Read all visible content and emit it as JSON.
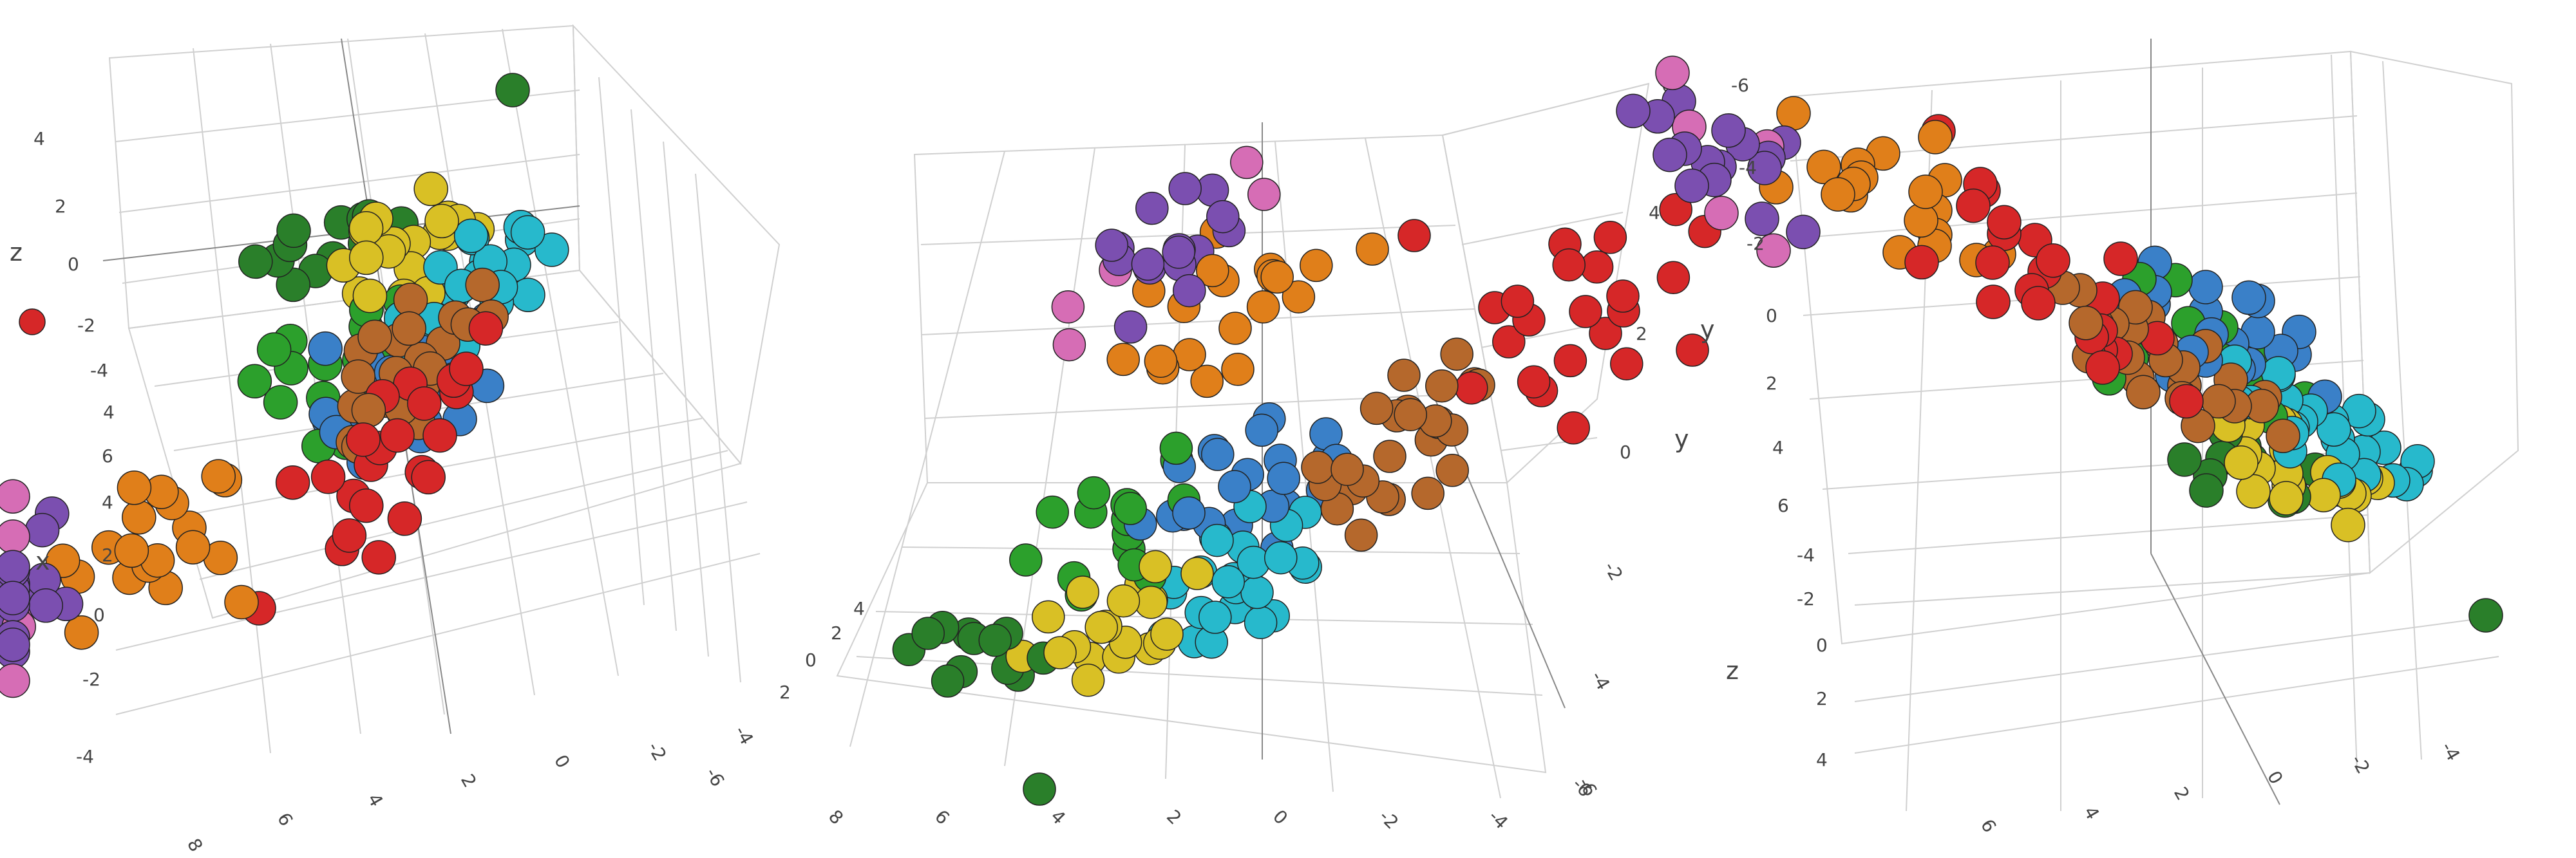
{
  "chart_data": [
    {
      "type": "scatter3d",
      "axes": {
        "x": {
          "title": "x",
          "ticks": [
            "8",
            "6",
            "4",
            "2",
            "0",
            "-2",
            "-4"
          ]
        },
        "y": {
          "title": "",
          "ticks": [
            "6",
            "4",
            "2",
            "0",
            "-2",
            "-4",
            "-6"
          ]
        },
        "z": {
          "title": "z",
          "ticks": [
            "4",
            "2",
            "0",
            "-2",
            "-4"
          ]
        }
      },
      "legend": [
        {
          "color": "#d62728"
        }
      ],
      "groups": "shared"
    },
    {
      "type": "scatter3d",
      "axes": {
        "x": {
          "title": "x",
          "ticks": [
            "8",
            "6",
            "4",
            "2",
            "0",
            "-2",
            "-4",
            "-6"
          ]
        },
        "y": {
          "title": "y",
          "ticks": [
            "6",
            "4",
            "2",
            "0",
            "-2",
            "-4",
            "-6"
          ]
        },
        "z": {
          "title": "",
          "ticks": [
            "4",
            "2",
            "0",
            "2"
          ]
        }
      },
      "groups": "shared"
    },
    {
      "type": "scatter3d",
      "axes": {
        "x": {
          "title": "x",
          "ticks": [
            "6",
            "4",
            "2",
            "0",
            "-2",
            "-4"
          ]
        },
        "y": {
          "title": "y",
          "ticks": [
            "-6",
            "-4",
            "-2",
            "0",
            "2",
            "4",
            "6"
          ]
        },
        "z": {
          "title": "z",
          "ticks": [
            "-4",
            "-2",
            "0",
            "2",
            "4"
          ]
        }
      },
      "groups": "shared"
    }
  ],
  "groups": [
    {
      "color": "#d62728",
      "points": [
        [
          -2,
          5,
          1.5
        ],
        [
          -1.5,
          4,
          0.5
        ],
        [
          -2.5,
          5.5,
          2
        ],
        [
          -1,
          3.5,
          -0.5
        ],
        [
          -3,
          4.5,
          1
        ],
        [
          -2,
          6,
          2.5
        ],
        [
          -1.8,
          5.2,
          0.2
        ],
        [
          -2.6,
          4.2,
          1.8
        ],
        [
          -1.2,
          4.8,
          -1
        ],
        [
          -3.2,
          5.8,
          0.8
        ],
        [
          -2.2,
          3.8,
          2.2
        ],
        [
          -1.6,
          5.6,
          -0.2
        ],
        [
          -2.9,
          3.2,
          1.2
        ],
        [
          -0.8,
          4.4,
          0.8
        ],
        [
          -3.4,
          4.9,
          2.6
        ],
        [
          -2.4,
          6.3,
          -0.6
        ],
        [
          -1.4,
          3.0,
          1.6
        ],
        [
          -3.0,
          6.6,
          0.4
        ],
        [
          -2.1,
          2.8,
          -0.9
        ],
        [
          -3.6,
          3.6,
          2.9
        ],
        [
          -0.6,
          5.9,
          1.9
        ],
        [
          -4,
          6,
          3.5
        ],
        [
          1,
          3,
          -3
        ]
      ]
    },
    {
      "color": "#e07f1a",
      "points": [
        [
          3,
          1,
          -1.5
        ],
        [
          3.5,
          0.5,
          -1
        ],
        [
          4,
          1.5,
          -2
        ],
        [
          2.5,
          0.8,
          -0.5
        ],
        [
          4.5,
          1.2,
          -1.2
        ],
        [
          3.2,
          1.8,
          -2.4
        ],
        [
          3.8,
          0.2,
          -0.8
        ],
        [
          2.8,
          1.4,
          -1.8
        ],
        [
          4.2,
          0.6,
          -0.2
        ],
        [
          3.4,
          2.2,
          -1.4
        ],
        [
          4.8,
          1.9,
          -2.8
        ],
        [
          2.6,
          0.1,
          -1.1
        ],
        [
          3.6,
          2.6,
          -0.6
        ],
        [
          5.2,
          0.9,
          -1.9
        ],
        [
          2.2,
          1.6,
          -2.2
        ],
        [
          4.4,
          -0.3,
          -1.6
        ],
        [
          3.0,
          2.9,
          -0.9
        ],
        [
          5.0,
          2.4,
          -0.4
        ],
        [
          1.5,
          2.5,
          -3
        ]
      ]
    },
    {
      "color": "#7b4fb0",
      "points": [
        [
          5.5,
          2,
          -1
        ],
        [
          6,
          2.5,
          -0.5
        ],
        [
          5.8,
          1.5,
          -1.5
        ],
        [
          6.4,
          2.2,
          -0.2
        ],
        [
          5.2,
          2.8,
          -1.2
        ],
        [
          6.8,
          1.8,
          -0.8
        ],
        [
          6.1,
          3.1,
          -1.8
        ],
        [
          5.6,
          1.2,
          0.2
        ],
        [
          7.0,
          2.6,
          -1.4
        ],
        [
          5.9,
          3.4,
          -0.4
        ],
        [
          6.6,
          1.4,
          -2.0
        ],
        [
          5.4,
          2.4,
          0.6
        ],
        [
          7.3,
          2.1,
          -0.6
        ],
        [
          6.3,
          2.9,
          0.4
        ],
        [
          5.1,
          1.9,
          -1.9
        ],
        [
          6.9,
          3.3,
          -1.1
        ]
      ]
    },
    {
      "color": "#d66db5",
      "points": [
        [
          6.2,
          1,
          -2
        ],
        [
          5.8,
          3.5,
          -2.4
        ],
        [
          6.6,
          0.8,
          0.8
        ],
        [
          5.4,
          3.8,
          -0.9
        ],
        [
          7.2,
          1.2,
          0.3
        ]
      ]
    },
    {
      "color": "#2ca02c",
      "points": [
        [
          1,
          -3,
          -1
        ],
        [
          1.5,
          -2.5,
          -0.5
        ],
        [
          0.5,
          -3.5,
          -1.5
        ],
        [
          2,
          -2,
          0
        ],
        [
          1.2,
          -4,
          -0.8
        ],
        [
          0.8,
          -2.8,
          0.4
        ],
        [
          1.8,
          -3.3,
          -1.9
        ],
        [
          2.4,
          -2.6,
          -1.2
        ],
        [
          0.2,
          -3.0,
          0.2
        ],
        [
          1.4,
          -1.8,
          -2.2
        ],
        [
          2.6,
          -3.8,
          -0.4
        ],
        [
          0.6,
          -4.4,
          -1.1
        ],
        [
          2.2,
          -1.6,
          0.9
        ],
        [
          1.0,
          -2.2,
          -2.6
        ],
        [
          3.0,
          -2.9,
          -0.6
        ],
        [
          0.4,
          -2.4,
          -1.7
        ]
      ]
    },
    {
      "color": "#2a7f2a",
      "points": [
        [
          2,
          -4.5,
          1
        ],
        [
          2.5,
          -5,
          0.5
        ],
        [
          1.5,
          -4.8,
          1.6
        ],
        [
          3,
          -5.2,
          0.2
        ],
        [
          2.2,
          -5.6,
          1.2
        ],
        [
          1.2,
          -4.2,
          2
        ],
        [
          2.8,
          -4.4,
          1.8
        ],
        [
          3.4,
          -5.5,
          0.8
        ],
        [
          1.8,
          -5.8,
          0.3
        ],
        [
          2.6,
          -4.0,
          2.4
        ],
        [
          3.6,
          -4.8,
          1.4
        ],
        [
          0.9,
          -5.2,
          0.9
        ],
        [
          -1,
          -6,
          3
        ]
      ]
    },
    {
      "color": "#3a80c8",
      "points": [
        [
          -0.5,
          -1,
          -1.5
        ],
        [
          0,
          -1.5,
          -1
        ],
        [
          -1,
          -0.5,
          -2
        ],
        [
          0.5,
          -2,
          -0.5
        ],
        [
          -0.8,
          -1.2,
          -0.2
        ],
        [
          0.2,
          -0.8,
          -2.4
        ],
        [
          -1.4,
          -1.6,
          -1.2
        ],
        [
          0.8,
          -1.4,
          -1.8
        ],
        [
          -0.2,
          -2.2,
          -0.8
        ],
        [
          -1.2,
          -0.2,
          -0.6
        ],
        [
          0.4,
          -2.6,
          -1.4
        ],
        [
          -1.6,
          -1.0,
          -2.2
        ],
        [
          1.0,
          -1.0,
          -0.9
        ],
        [
          -0.6,
          -2.0,
          -2.6
        ],
        [
          0.6,
          -0.4,
          -1.1
        ],
        [
          -1.8,
          -2.0,
          -0.4
        ],
        [
          1.2,
          -1.8,
          -1.6
        ],
        [
          -0.4,
          -0.6,
          -0.1
        ],
        [
          0.0,
          -2.8,
          -2.0
        ],
        [
          -1.0,
          -2.4,
          -1.5
        ],
        [
          1.4,
          -2.2,
          0.1
        ],
        [
          -2.0,
          -1.4,
          -1.8
        ]
      ]
    },
    {
      "color": "#27b9cc",
      "points": [
        [
          -1,
          -2,
          0
        ],
        [
          -1.5,
          -2.5,
          0.5
        ],
        [
          -0.5,
          -1.5,
          -0.5
        ],
        [
          -2,
          -3,
          0.2
        ],
        [
          -1.2,
          -1.8,
          0.8
        ],
        [
          -0.8,
          -2.8,
          -0.2
        ],
        [
          -1.8,
          -2.2,
          1.0
        ],
        [
          -1.4,
          -3.2,
          0.4
        ],
        [
          -0.6,
          -2.4,
          -0.8
        ],
        [
          -2.2,
          -1.6,
          0.6
        ],
        [
          -1.0,
          -3.6,
          0.9
        ],
        [
          -1.6,
          -1.2,
          -0.4
        ],
        [
          -2.4,
          -2.6,
          1.2
        ],
        [
          -0.4,
          -3.0,
          0.1
        ],
        [
          -1.9,
          -3.8,
          0.3
        ],
        [
          -1.1,
          -1.0,
          0.7
        ],
        [
          -2.6,
          -2.0,
          -0.1
        ],
        [
          -0.9,
          -2.0,
          1.4
        ],
        [
          -1.7,
          -2.9,
          -0.6
        ],
        [
          -2.0,
          -3.4,
          0.9
        ],
        [
          -1.3,
          -2.6,
          1.6
        ],
        [
          -0.2,
          -1.8,
          0.5
        ],
        [
          -2.8,
          -2.8,
          0.4
        ],
        [
          -1.5,
          -1.4,
          1.1
        ],
        [
          -0.7,
          -3.4,
          -0.3
        ]
      ]
    },
    {
      "color": "#d9c025",
      "points": [
        [
          0,
          -3,
          1
        ],
        [
          0.5,
          -3.5,
          1.5
        ],
        [
          -0.5,
          -2.5,
          0.5
        ],
        [
          1,
          -4,
          2
        ],
        [
          0.2,
          -3.2,
          0.2
        ],
        [
          -0.3,
          -3.8,
          1.2
        ],
        [
          0.8,
          -2.8,
          1.8
        ],
        [
          0.4,
          -4.4,
          0.8
        ],
        [
          -0.8,
          -3.4,
          1.6
        ],
        [
          1.2,
          -3.6,
          0.4
        ],
        [
          0.0,
          -4.2,
          2.2
        ],
        [
          -0.6,
          -3.0,
          2.0
        ],
        [
          0.6,
          -2.4,
          1.0
        ],
        [
          1.4,
          -4.6,
          1.4
        ],
        [
          -0.2,
          -4.6,
          0.6
        ],
        [
          0.9,
          -3.1,
          2.4
        ],
        [
          -1.0,
          -3.9,
          0.9
        ],
        [
          0.3,
          -2.6,
          1.9
        ],
        [
          1.6,
          -3.9,
          1.1
        ],
        [
          -0.4,
          -4.0,
          1.4
        ]
      ]
    },
    {
      "color": "#b5682c",
      "points": [
        [
          -1.5,
          1,
          1
        ],
        [
          -1,
          1.5,
          0.5
        ],
        [
          -2,
          0.5,
          1.5
        ],
        [
          -0.5,
          2,
          0
        ],
        [
          -1.2,
          0.8,
          1.8
        ],
        [
          -1.8,
          1.8,
          0.8
        ],
        [
          -0.8,
          0.2,
          1.2
        ],
        [
          -2.2,
          1.2,
          0.3
        ],
        [
          -1.4,
          2.2,
          1.6
        ],
        [
          -0.6,
          1.0,
          2.0
        ],
        [
          -2.4,
          0.2,
          0.9
        ],
        [
          -1.0,
          2.6,
          1.1
        ],
        [
          -1.6,
          0.0,
          0.6
        ],
        [
          -2.6,
          1.6,
          1.9
        ],
        [
          -0.4,
          1.6,
          0.7
        ],
        [
          -1.9,
          2.4,
          0.2
        ],
        [
          -1.1,
          0.4,
          2.3
        ],
        [
          -2.0,
          2.0,
          1.3
        ],
        [
          -0.9,
          2.9,
          0.4
        ],
        [
          -2.8,
          0.8,
          1.4
        ],
        [
          -1.3,
          1.4,
          0.0
        ],
        [
          -0.2,
          0.6,
          1.5
        ],
        [
          -1.7,
          2.8,
          1.0
        ],
        [
          -2.3,
          -0.2,
          1.7
        ],
        [
          -0.7,
          2.3,
          1.9
        ]
      ]
    }
  ]
}
